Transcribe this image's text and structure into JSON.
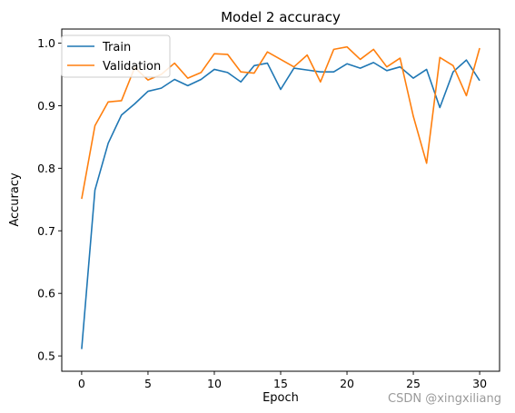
{
  "chart_data": {
    "type": "line",
    "title": "Model 2 accuracy",
    "xlabel": "Epoch",
    "ylabel": "Accuracy",
    "x": [
      0,
      1,
      2,
      3,
      4,
      5,
      6,
      7,
      8,
      9,
      10,
      11,
      12,
      13,
      14,
      15,
      16,
      17,
      18,
      19,
      20,
      21,
      22,
      23,
      24,
      25,
      26,
      27,
      28,
      29,
      30
    ],
    "xlim": [
      -1.5,
      31.5
    ],
    "ylim": [
      0.4755,
      1.0225
    ],
    "xticks": [
      0,
      5,
      10,
      15,
      20,
      25,
      30
    ],
    "yticks": [
      0.5,
      0.6,
      0.7,
      0.8,
      0.9,
      1.0
    ],
    "ytick_labels": [
      "0.5",
      "0.6",
      "0.7",
      "0.8",
      "0.9",
      "1.0"
    ],
    "grid": false,
    "legend_position": "upper-left",
    "series": [
      {
        "name": "Train",
        "color": "#1f77b4",
        "values": [
          0.511,
          0.765,
          0.84,
          0.885,
          0.903,
          0.923,
          0.928,
          0.942,
          0.932,
          0.942,
          0.958,
          0.953,
          0.938,
          0.964,
          0.968,
          0.926,
          0.96,
          0.957,
          0.954,
          0.954,
          0.967,
          0.96,
          0.969,
          0.956,
          0.962,
          0.944,
          0.958,
          0.897,
          0.954,
          0.973,
          0.94
        ]
      },
      {
        "name": "Validation",
        "color": "#ff7f0e",
        "values": [
          0.751,
          0.868,
          0.906,
          0.908,
          0.961,
          0.941,
          0.95,
          0.968,
          0.944,
          0.953,
          0.983,
          0.982,
          0.954,
          0.952,
          0.986,
          0.974,
          0.962,
          0.981,
          0.938,
          0.99,
          0.994,
          0.974,
          0.99,
          0.962,
          0.976,
          0.883,
          0.808,
          0.977,
          0.964,
          0.916,
          0.992
        ]
      }
    ]
  },
  "watermark": "CSDN @xingxiliang"
}
